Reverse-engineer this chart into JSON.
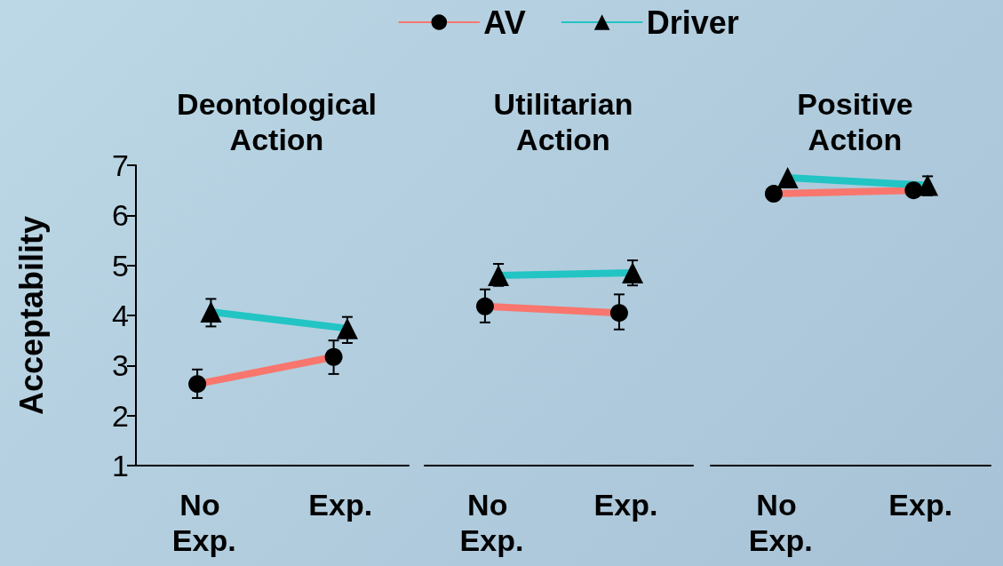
{
  "chart_data": [
    {
      "type": "line",
      "title": "Deontological\nAction",
      "ylabel": "Acceptability",
      "categories": [
        "No Exp.",
        "Exp."
      ],
      "ylim": [
        1,
        7
      ],
      "yticks": [
        1,
        2,
        3,
        4,
        5,
        6,
        7
      ],
      "tick_labels": "xy",
      "series": [
        {
          "color": "#f8766d",
          "marker": "circle",
          "values": [
            2.63,
            3.17
          ],
          "errors": [
            [
              2.35,
              2.92
            ],
            [
              2.83,
              3.5
            ]
          ]
        },
        {
          "color": "#22c4c4",
          "marker": "triangle",
          "values": [
            4.07,
            3.74
          ],
          "errors": [
            [
              3.78,
              4.33
            ],
            [
              3.45,
              3.97
            ]
          ]
        }
      ]
    },
    {
      "type": "line",
      "title": "Utilitarian\nAction",
      "categories": [
        "No Exp.",
        "Exp."
      ],
      "ylim": [
        1,
        7
      ],
      "yticks": [
        1,
        2,
        3,
        4,
        5,
        6,
        7
      ],
      "tick_labels": "x",
      "legend": "top",
      "series": [
        {
          "name": "AV",
          "color": "#f8766d",
          "marker": "circle",
          "values": [
            4.18,
            4.05
          ],
          "errors": [
            [
              3.86,
              4.52
            ],
            [
              3.72,
              4.42
            ]
          ]
        },
        {
          "name": "Driver",
          "color": "#22c4c4",
          "marker": "triangle",
          "values": [
            4.8,
            4.85
          ],
          "errors": [
            [
              4.59,
              5.03
            ],
            [
              4.6,
              5.1
            ]
          ]
        }
      ]
    },
    {
      "type": "line",
      "title": "Positive\nAction",
      "categories": [
        "No Exp.",
        "Exp."
      ],
      "ylim": [
        1,
        7
      ],
      "yticks": [
        1,
        2,
        3,
        4,
        5,
        6,
        7
      ],
      "tick_labels": "x",
      "series": [
        {
          "color": "#f8766d",
          "marker": "circle",
          "values": [
            6.43,
            6.5
          ],
          "errors": [
            null,
            [
              6.38,
              6.62
            ]
          ]
        },
        {
          "color": "#22c4c4",
          "marker": "triangle",
          "values": [
            6.75,
            6.6
          ],
          "errors": [
            null,
            [
              6.4,
              6.78
            ]
          ]
        }
      ]
    }
  ]
}
